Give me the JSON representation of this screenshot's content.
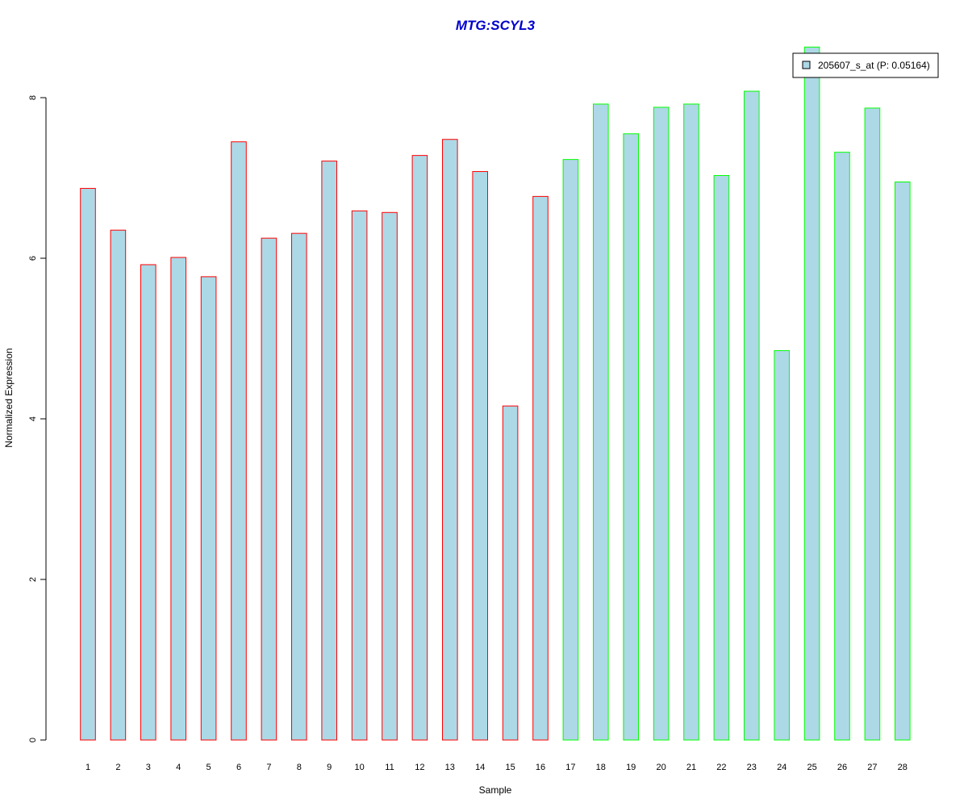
{
  "chart_data": {
    "type": "bar",
    "title": "MTG:SCYL3",
    "xlabel": "Sample",
    "ylabel": "Normalized Expression",
    "categories": [
      "1",
      "2",
      "3",
      "4",
      "5",
      "6",
      "7",
      "8",
      "9",
      "10",
      "11",
      "12",
      "13",
      "14",
      "15",
      "16",
      "17",
      "18",
      "19",
      "20",
      "21",
      "22",
      "23",
      "24",
      "25",
      "26",
      "27",
      "28"
    ],
    "series": [
      {
        "name": "205607_s_at (P: 0.05164)",
        "values": [
          6.87,
          6.35,
          5.92,
          6.01,
          5.77,
          7.45,
          6.25,
          6.31,
          7.21,
          6.59,
          6.57,
          7.28,
          7.48,
          7.08,
          4.16,
          6.77,
          7.23,
          7.92,
          7.55,
          7.88,
          7.92,
          7.03,
          8.08,
          4.85,
          8.63,
          7.32,
          7.87,
          6.95
        ],
        "fill_color": "#add8e6",
        "border_colors": [
          "#ff0000",
          "#ff0000",
          "#ff0000",
          "#ff0000",
          "#ff0000",
          "#ff0000",
          "#ff0000",
          "#ff0000",
          "#ff0000",
          "#ff0000",
          "#ff0000",
          "#ff0000",
          "#ff0000",
          "#ff0000",
          "#ff0000",
          "#ff0000",
          "#00ff00",
          "#00ff00",
          "#00ff00",
          "#00ff00",
          "#00ff00",
          "#00ff00",
          "#00ff00",
          "#00ff00",
          "#00ff00",
          "#00ff00",
          "#00ff00",
          "#00ff00"
        ]
      }
    ],
    "yticks": [
      "0",
      "2",
      "4",
      "6",
      "8"
    ],
    "ylim": [
      0,
      8.7
    ],
    "grid": false,
    "legend_position": "top-right",
    "title_color": "#0000cc"
  }
}
